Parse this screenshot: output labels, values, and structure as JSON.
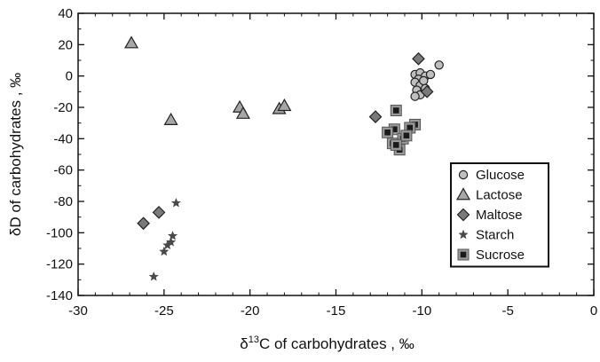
{
  "chart_data": {
    "type": "scatter",
    "xlabel_parts": {
      "prefix": "δ",
      "sup": "13",
      "suffix": "C of carbohydrates , ‰"
    },
    "ylabel": "δD of carbohydrates , ‰",
    "xlim": [
      -30,
      0
    ],
    "ylim": [
      -140,
      40
    ],
    "xticks": [
      -30,
      -25,
      -20,
      -15,
      -10,
      -5,
      0
    ],
    "yticks": [
      40,
      20,
      0,
      -20,
      -40,
      -60,
      -80,
      -100,
      -120,
      -140
    ],
    "grid": false,
    "legend_position": "right",
    "series": [
      {
        "name": "Glucose",
        "marker": "circle",
        "fill": "#bfbfbf",
        "points": [
          [
            -10.4,
            1
          ],
          [
            -10.1,
            2
          ],
          [
            -9.8,
            0
          ],
          [
            -9.5,
            1
          ],
          [
            -9.0,
            7
          ],
          [
            -10.2,
            -2
          ],
          [
            -10.4,
            -4
          ],
          [
            -10.1,
            -6
          ],
          [
            -9.9,
            -3
          ],
          [
            -10.3,
            -9
          ],
          [
            -10.1,
            -12
          ],
          [
            -9.8,
            -8
          ],
          [
            -10.4,
            -13
          ]
        ]
      },
      {
        "name": "Lactose",
        "marker": "triangle",
        "fill": "#a6a6a6",
        "points": [
          [
            -26.9,
            21
          ],
          [
            -24.6,
            -28
          ],
          [
            -20.6,
            -20
          ],
          [
            -20.4,
            -24
          ],
          [
            -18.3,
            -21
          ],
          [
            -18.0,
            -19
          ]
        ]
      },
      {
        "name": "Maltose",
        "marker": "diamond",
        "fill": "#7a7a7a",
        "points": [
          [
            -26.2,
            -94
          ],
          [
            -25.3,
            -87
          ],
          [
            -12.7,
            -26
          ],
          [
            -10.2,
            11
          ],
          [
            -9.7,
            -10
          ]
        ]
      },
      {
        "name": "Starch",
        "marker": "star",
        "fill": "#4a4a4a",
        "points": [
          [
            -24.3,
            -81
          ],
          [
            -25.6,
            -128
          ],
          [
            -24.5,
            -102
          ],
          [
            -24.6,
            -106
          ],
          [
            -24.8,
            -108
          ],
          [
            -25.0,
            -112
          ]
        ]
      },
      {
        "name": "Sucrose",
        "marker": "square",
        "fill": "#1a1a1a",
        "points": [
          [
            -11.5,
            -22
          ],
          [
            -10.4,
            -31
          ],
          [
            -10.7,
            -33
          ],
          [
            -11.6,
            -34
          ],
          [
            -11.1,
            -40
          ],
          [
            -11.7,
            -43
          ],
          [
            -11.3,
            -47
          ],
          [
            -12.0,
            -36
          ],
          [
            -10.9,
            -38
          ],
          [
            -11.5,
            -44
          ]
        ]
      }
    ]
  }
}
